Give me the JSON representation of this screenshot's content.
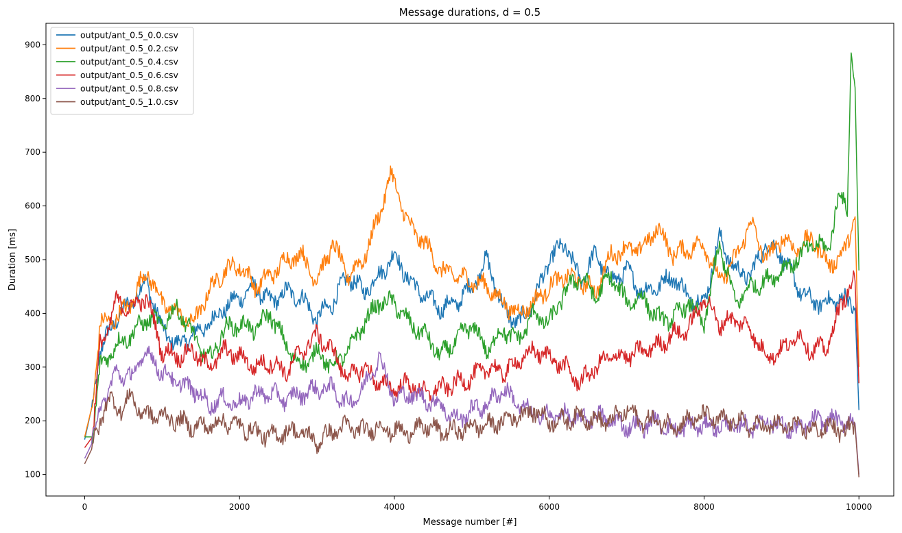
{
  "chart_data": {
    "type": "line",
    "title": "Message durations, d = 0.5",
    "xlabel": "Message number [#]",
    "ylabel": "Duration [ms]",
    "xlim": [
      -500,
      10450
    ],
    "ylim": [
      60,
      940
    ],
    "xticks": [
      0,
      2000,
      4000,
      6000,
      8000,
      10000
    ],
    "yticks": [
      100,
      200,
      300,
      400,
      500,
      600,
      700,
      800,
      900
    ],
    "grid": false,
    "legend_position": "top-left",
    "series": [
      {
        "name": "output/ant_0.5_0.0.csv",
        "color": "#1f77b4",
        "x": [
          0,
          100,
          200,
          400,
          600,
          800,
          1000,
          1200,
          1400,
          1600,
          1800,
          2000,
          2200,
          2400,
          2600,
          2800,
          3000,
          3200,
          3400,
          3600,
          3800,
          4000,
          4200,
          4400,
          4600,
          4800,
          5000,
          5200,
          5400,
          5600,
          5800,
          6000,
          6200,
          6400,
          6600,
          6800,
          7000,
          7200,
          7400,
          7600,
          7800,
          8000,
          8200,
          8400,
          8600,
          8800,
          9000,
          9200,
          9400,
          9600,
          9800,
          9950,
          10000
        ],
        "y": [
          165,
          230,
          330,
          390,
          420,
          460,
          370,
          340,
          360,
          380,
          410,
          430,
          450,
          420,
          440,
          430,
          390,
          420,
          470,
          440,
          470,
          510,
          460,
          430,
          410,
          420,
          450,
          500,
          410,
          380,
          420,
          500,
          530,
          460,
          510,
          460,
          480,
          440,
          450,
          470,
          430,
          420,
          540,
          480,
          470,
          530,
          510,
          450,
          420,
          420,
          430,
          410,
          220
        ]
      },
      {
        "name": "output/ant_0.5_0.2.csv",
        "color": "#ff7f0e",
        "x": [
          0,
          100,
          200,
          400,
          600,
          800,
          1000,
          1200,
          1400,
          1600,
          1800,
          2000,
          2200,
          2400,
          2600,
          2800,
          3000,
          3200,
          3400,
          3600,
          3800,
          3950,
          4200,
          4400,
          4600,
          4800,
          5000,
          5200,
          5400,
          5600,
          5800,
          6000,
          6200,
          6400,
          6600,
          6800,
          7000,
          7200,
          7400,
          7600,
          7800,
          8000,
          8200,
          8400,
          8600,
          8800,
          9000,
          9200,
          9400,
          9600,
          9800,
          9950,
          10000
        ],
        "y": [
          170,
          230,
          380,
          390,
          420,
          480,
          420,
          400,
          380,
          440,
          480,
          490,
          450,
          470,
          500,
          510,
          460,
          530,
          470,
          500,
          580,
          660,
          560,
          530,
          480,
          470,
          460,
          450,
          420,
          400,
          420,
          450,
          470,
          460,
          440,
          510,
          520,
          520,
          560,
          510,
          520,
          530,
          460,
          500,
          570,
          500,
          540,
          520,
          540,
          490,
          510,
          580,
          300
        ]
      },
      {
        "name": "output/ant_0.5_0.4.csv",
        "color": "#2ca02c",
        "x": [
          0,
          100,
          200,
          400,
          600,
          800,
          1000,
          1200,
          1400,
          1600,
          1800,
          2000,
          2200,
          2400,
          2600,
          2800,
          3000,
          3200,
          3400,
          3600,
          3800,
          4000,
          4200,
          4400,
          4600,
          4800,
          5000,
          5200,
          5400,
          5600,
          5800,
          6000,
          6200,
          6400,
          6600,
          6800,
          7000,
          7200,
          7400,
          7600,
          7800,
          8000,
          8200,
          8400,
          8600,
          8800,
          9000,
          9200,
          9400,
          9600,
          9750,
          9850,
          9900,
          9950,
          10000
        ],
        "y": [
          170,
          170,
          300,
          340,
          360,
          390,
          380,
          410,
          360,
          310,
          370,
          380,
          370,
          400,
          340,
          300,
          330,
          300,
          330,
          380,
          420,
          420,
          380,
          360,
          320,
          350,
          380,
          330,
          370,
          350,
          400,
          380,
          440,
          470,
          430,
          470,
          420,
          430,
          390,
          390,
          420,
          380,
          530,
          420,
          450,
          460,
          480,
          500,
          530,
          520,
          620,
          600,
          890,
          820,
          480
        ]
      },
      {
        "name": "output/ant_0.5_0.6.csv",
        "color": "#d62728",
        "x": [
          0,
          100,
          200,
          300,
          400,
          600,
          800,
          1000,
          1200,
          1400,
          1600,
          1800,
          2000,
          2200,
          2400,
          2600,
          2800,
          3000,
          3200,
          3400,
          3600,
          3800,
          4000,
          4200,
          4400,
          4600,
          4800,
          5000,
          5200,
          5400,
          5600,
          5800,
          6000,
          6200,
          6400,
          6600,
          6800,
          7000,
          7200,
          7400,
          7600,
          7800,
          8000,
          8200,
          8400,
          8600,
          8800,
          9000,
          9200,
          9400,
          9600,
          9800,
          9950,
          10000
        ],
        "y": [
          150,
          170,
          340,
          370,
          420,
          410,
          430,
          330,
          320,
          330,
          300,
          330,
          320,
          300,
          310,
          290,
          330,
          360,
          330,
          280,
          300,
          270,
          260,
          270,
          250,
          260,
          270,
          280,
          300,
          290,
          310,
          330,
          320,
          300,
          270,
          300,
          320,
          320,
          330,
          340,
          360,
          370,
          430,
          380,
          390,
          370,
          320,
          330,
          360,
          330,
          340,
          430,
          460,
          270
        ]
      },
      {
        "name": "output/ant_0.5_0.8.csv",
        "color": "#9467bd",
        "x": [
          0,
          100,
          200,
          300,
          400,
          600,
          800,
          1000,
          1200,
          1400,
          1600,
          1800,
          2000,
          2200,
          2400,
          2600,
          2800,
          3000,
          3200,
          3400,
          3600,
          3800,
          4000,
          4200,
          4400,
          4600,
          4800,
          5000,
          5200,
          5400,
          5600,
          5800,
          6000,
          6200,
          6400,
          6600,
          6800,
          7000,
          7200,
          7400,
          7600,
          7800,
          8000,
          8200,
          8400,
          8600,
          8800,
          9000,
          9200,
          9400,
          9600,
          9800,
          9950,
          10000
        ],
        "y": [
          130,
          160,
          230,
          250,
          290,
          280,
          330,
          290,
          270,
          260,
          230,
          240,
          230,
          250,
          250,
          240,
          250,
          260,
          260,
          230,
          260,
          320,
          240,
          250,
          240,
          230,
          200,
          220,
          230,
          260,
          230,
          210,
          210,
          210,
          200,
          210,
          200,
          190,
          190,
          200,
          180,
          190,
          190,
          190,
          190,
          190,
          200,
          190,
          180,
          200,
          200,
          200,
          195,
          100
        ]
      },
      {
        "name": "output/ant_0.5_1.0.csv",
        "color": "#8c564b",
        "x": [
          0,
          100,
          200,
          300,
          400,
          500,
          600,
          700,
          800,
          1000,
          1200,
          1400,
          1600,
          1800,
          2000,
          2200,
          2400,
          2600,
          2800,
          3000,
          3200,
          3400,
          3600,
          3800,
          4000,
          4200,
          4400,
          4600,
          4800,
          5000,
          5200,
          5400,
          5600,
          5800,
          6000,
          6200,
          6400,
          6600,
          6800,
          7000,
          7200,
          7400,
          7600,
          7800,
          8000,
          8200,
          8400,
          8600,
          8800,
          9000,
          9200,
          9400,
          9600,
          9800,
          9950,
          10000
        ],
        "y": [
          120,
          150,
          200,
          240,
          230,
          220,
          250,
          220,
          210,
          210,
          200,
          190,
          190,
          200,
          190,
          180,
          170,
          180,
          180,
          160,
          180,
          190,
          180,
          190,
          180,
          180,
          190,
          180,
          180,
          190,
          190,
          200,
          210,
          220,
          200,
          200,
          210,
          200,
          200,
          220,
          200,
          200,
          190,
          200,
          210,
          200,
          200,
          190,
          190,
          190,
          190,
          180,
          190,
          180,
          190,
          95
        ]
      }
    ]
  }
}
